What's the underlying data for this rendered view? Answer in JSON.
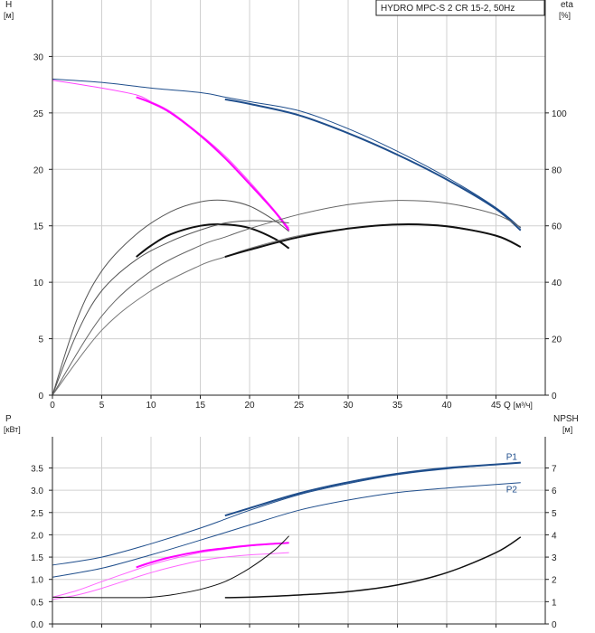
{
  "chart_data": [
    {
      "type": "line",
      "title": "HYDRO MPC-S 2 CR 15-2, 50Hz",
      "xlabel": "Q",
      "xunit": "[м³/ч]",
      "ylabel": "H",
      "yunit": "[м]",
      "y2label": "eta",
      "y2unit": "[%]",
      "xlim": [
        0,
        50
      ],
      "ylim": [
        0,
        35
      ],
      "y2lim": [
        0,
        140
      ],
      "xticks": [
        "0",
        "5",
        "10",
        "15",
        "20",
        "25",
        "30",
        "35",
        "40",
        "45"
      ],
      "yticks": [
        "0",
        "5",
        "10",
        "15",
        "20",
        "25",
        "30"
      ],
      "y2ticks": [
        "0",
        "20",
        "40",
        "60",
        "80",
        "100"
      ],
      "grid": true,
      "series": [
        {
          "axis": "y",
          "color": "#1f4e8c",
          "width": 1,
          "x": [
            0,
            5,
            10,
            15,
            17.5,
            20,
            25,
            30,
            35,
            40,
            45,
            47.5
          ],
          "y": [
            28,
            27.7,
            27.2,
            26.8,
            26.4,
            26.0,
            25.2,
            23.6,
            21.6,
            19.3,
            16.6,
            14.8
          ]
        },
        {
          "axis": "y",
          "color": "#1f4e8c",
          "width": 2,
          "x": [
            17.5,
            20,
            25,
            30,
            35,
            40,
            45,
            47.5
          ],
          "y": [
            26.2,
            25.8,
            24.8,
            23.2,
            21.3,
            19.1,
            16.5,
            14.6
          ]
        },
        {
          "axis": "y",
          "color": "#ff44ff",
          "width": 1,
          "x": [
            0,
            5,
            8.5,
            10,
            12,
            15,
            17.5,
            20,
            22.5,
            24
          ],
          "y": [
            27.9,
            27.2,
            26.6,
            26.0,
            25.1,
            23.1,
            21.2,
            18.9,
            16.4,
            14.8
          ]
        },
        {
          "axis": "y",
          "color": "#ff00ff",
          "width": 2,
          "x": [
            8.5,
            10,
            12,
            15,
            17.5,
            20,
            22.5,
            24
          ],
          "y": [
            26.4,
            25.9,
            25.0,
            23.0,
            21.0,
            18.7,
            16.3,
            14.6
          ]
        },
        {
          "axis": "y2",
          "color": "#555555",
          "width": 1,
          "x": [
            0,
            2.5,
            5,
            8.5,
            12,
            15,
            17.5,
            20,
            22.5,
            24
          ],
          "y": [
            0,
            27,
            44,
            57,
            65,
            68.5,
            69,
            67,
            62,
            58
          ]
        },
        {
          "axis": "y2",
          "color": "#111111",
          "width": 2,
          "x": [
            8.5,
            10,
            12,
            15,
            17.5,
            20,
            22.5,
            24
          ],
          "y": [
            49,
            53,
            57,
            60,
            60.5,
            59.2,
            55.5,
            52
          ]
        },
        {
          "axis": "y2",
          "color": "#555555",
          "width": 1,
          "x": [
            0,
            2.5,
            5,
            8.5,
            12,
            15,
            17.5,
            20,
            22.5,
            24
          ],
          "y": [
            0,
            22,
            37,
            48,
            54.5,
            58.5,
            61,
            61.8,
            61.5,
            61
          ]
        },
        {
          "axis": "y2",
          "color": "#666666",
          "width": 1,
          "x": [
            0,
            5,
            10,
            15,
            17.5,
            20,
            25,
            30,
            35,
            40,
            45,
            47.5
          ],
          "y": [
            0,
            28,
            44,
            53,
            56,
            59,
            64,
            67.5,
            69,
            68,
            64,
            59.5
          ]
        },
        {
          "axis": "y2",
          "color": "#777777",
          "width": 1,
          "x": [
            0,
            5,
            10,
            15,
            17.5,
            20,
            25,
            30,
            35,
            40,
            45,
            47.5
          ],
          "y": [
            0,
            23,
            37,
            46,
            49,
            52,
            56.5,
            59,
            60.5,
            60,
            56.5,
            52.5
          ]
        },
        {
          "axis": "y2",
          "color": "#111111",
          "width": 2,
          "x": [
            17.5,
            20,
            25,
            30,
            35,
            40,
            45,
            47.5
          ],
          "y": [
            49,
            51.5,
            56,
            59,
            60.5,
            59.8,
            56.5,
            52.5
          ]
        }
      ]
    },
    {
      "type": "line",
      "ylabel": "P",
      "yunit": "[кВт]",
      "y2label": "NPSH",
      "y2unit": "[м]",
      "xlim": [
        0,
        50
      ],
      "ylim": [
        0,
        4.2
      ],
      "y2lim": [
        0,
        8.4
      ],
      "yticks": [
        "0.0",
        "0.5",
        "1.0",
        "1.5",
        "2.0",
        "2.5",
        "3.0",
        "3.5"
      ],
      "y2ticks": [
        "0",
        "1",
        "2",
        "3",
        "4",
        "5",
        "6",
        "7"
      ],
      "grid": true,
      "series": [
        {
          "name": "P1",
          "label_at": [
            47.5,
            3.68
          ],
          "axis": "y",
          "color": "#1f4e8c",
          "width": 1,
          "x": [
            0,
            5,
            10,
            15,
            17.5,
            20,
            25,
            30,
            35,
            40,
            45,
            47.5
          ],
          "y": [
            1.32,
            1.5,
            1.8,
            2.15,
            2.35,
            2.55,
            2.9,
            3.15,
            3.35,
            3.48,
            3.58,
            3.62
          ]
        },
        {
          "axis": "y",
          "color": "#1f4e8c",
          "width": 2,
          "x": [
            17.5,
            20,
            25,
            30,
            35,
            40,
            45,
            47.5
          ],
          "y": [
            2.43,
            2.6,
            2.93,
            3.18,
            3.37,
            3.5,
            3.58,
            3.62
          ]
        },
        {
          "name": "P2",
          "label_at": [
            47.5,
            2.95
          ],
          "axis": "y",
          "color": "#1f4e8c",
          "width": 1,
          "x": [
            0,
            5,
            10,
            15,
            17.5,
            20,
            25,
            30,
            35,
            40,
            45,
            47.5
          ],
          "y": [
            1.05,
            1.25,
            1.55,
            1.88,
            2.05,
            2.22,
            2.55,
            2.78,
            2.95,
            3.05,
            3.13,
            3.17
          ]
        },
        {
          "axis": "y",
          "color": "#ff66ff",
          "width": 1,
          "x": [
            0,
            2.5,
            5,
            8.5,
            10,
            12,
            15,
            17.5,
            20,
            22.5,
            24
          ],
          "y": [
            0.6,
            0.75,
            0.95,
            1.22,
            1.33,
            1.45,
            1.6,
            1.68,
            1.75,
            1.8,
            1.82
          ]
        },
        {
          "axis": "y",
          "color": "#ff00ff",
          "width": 2,
          "x": [
            8.5,
            10,
            12,
            15,
            17.5,
            20,
            22.5,
            24
          ],
          "y": [
            1.27,
            1.38,
            1.5,
            1.63,
            1.7,
            1.76,
            1.8,
            1.82
          ]
        },
        {
          "axis": "y",
          "color": "#ff66ff",
          "width": 1,
          "x": [
            0,
            2.5,
            5,
            8.5,
            10,
            12,
            15,
            17.5,
            20,
            22.5,
            24
          ],
          "y": [
            0.55,
            0.65,
            0.8,
            1.05,
            1.15,
            1.27,
            1.42,
            1.5,
            1.55,
            1.58,
            1.6
          ]
        },
        {
          "axis": "y2",
          "color": "#111111",
          "width": 1,
          "x": [
            0,
            5,
            8.5,
            10,
            12,
            15,
            17.5,
            20,
            22.5,
            24
          ],
          "y": [
            1.2,
            1.18,
            1.18,
            1.2,
            1.3,
            1.55,
            1.9,
            2.5,
            3.3,
            3.95
          ]
        },
        {
          "axis": "y2",
          "color": "#111111",
          "width": 1.5,
          "x": [
            17.5,
            20,
            25,
            30,
            35,
            40,
            45,
            47.5
          ],
          "y": [
            1.18,
            1.2,
            1.3,
            1.45,
            1.75,
            2.3,
            3.2,
            3.9
          ]
        }
      ]
    }
  ]
}
